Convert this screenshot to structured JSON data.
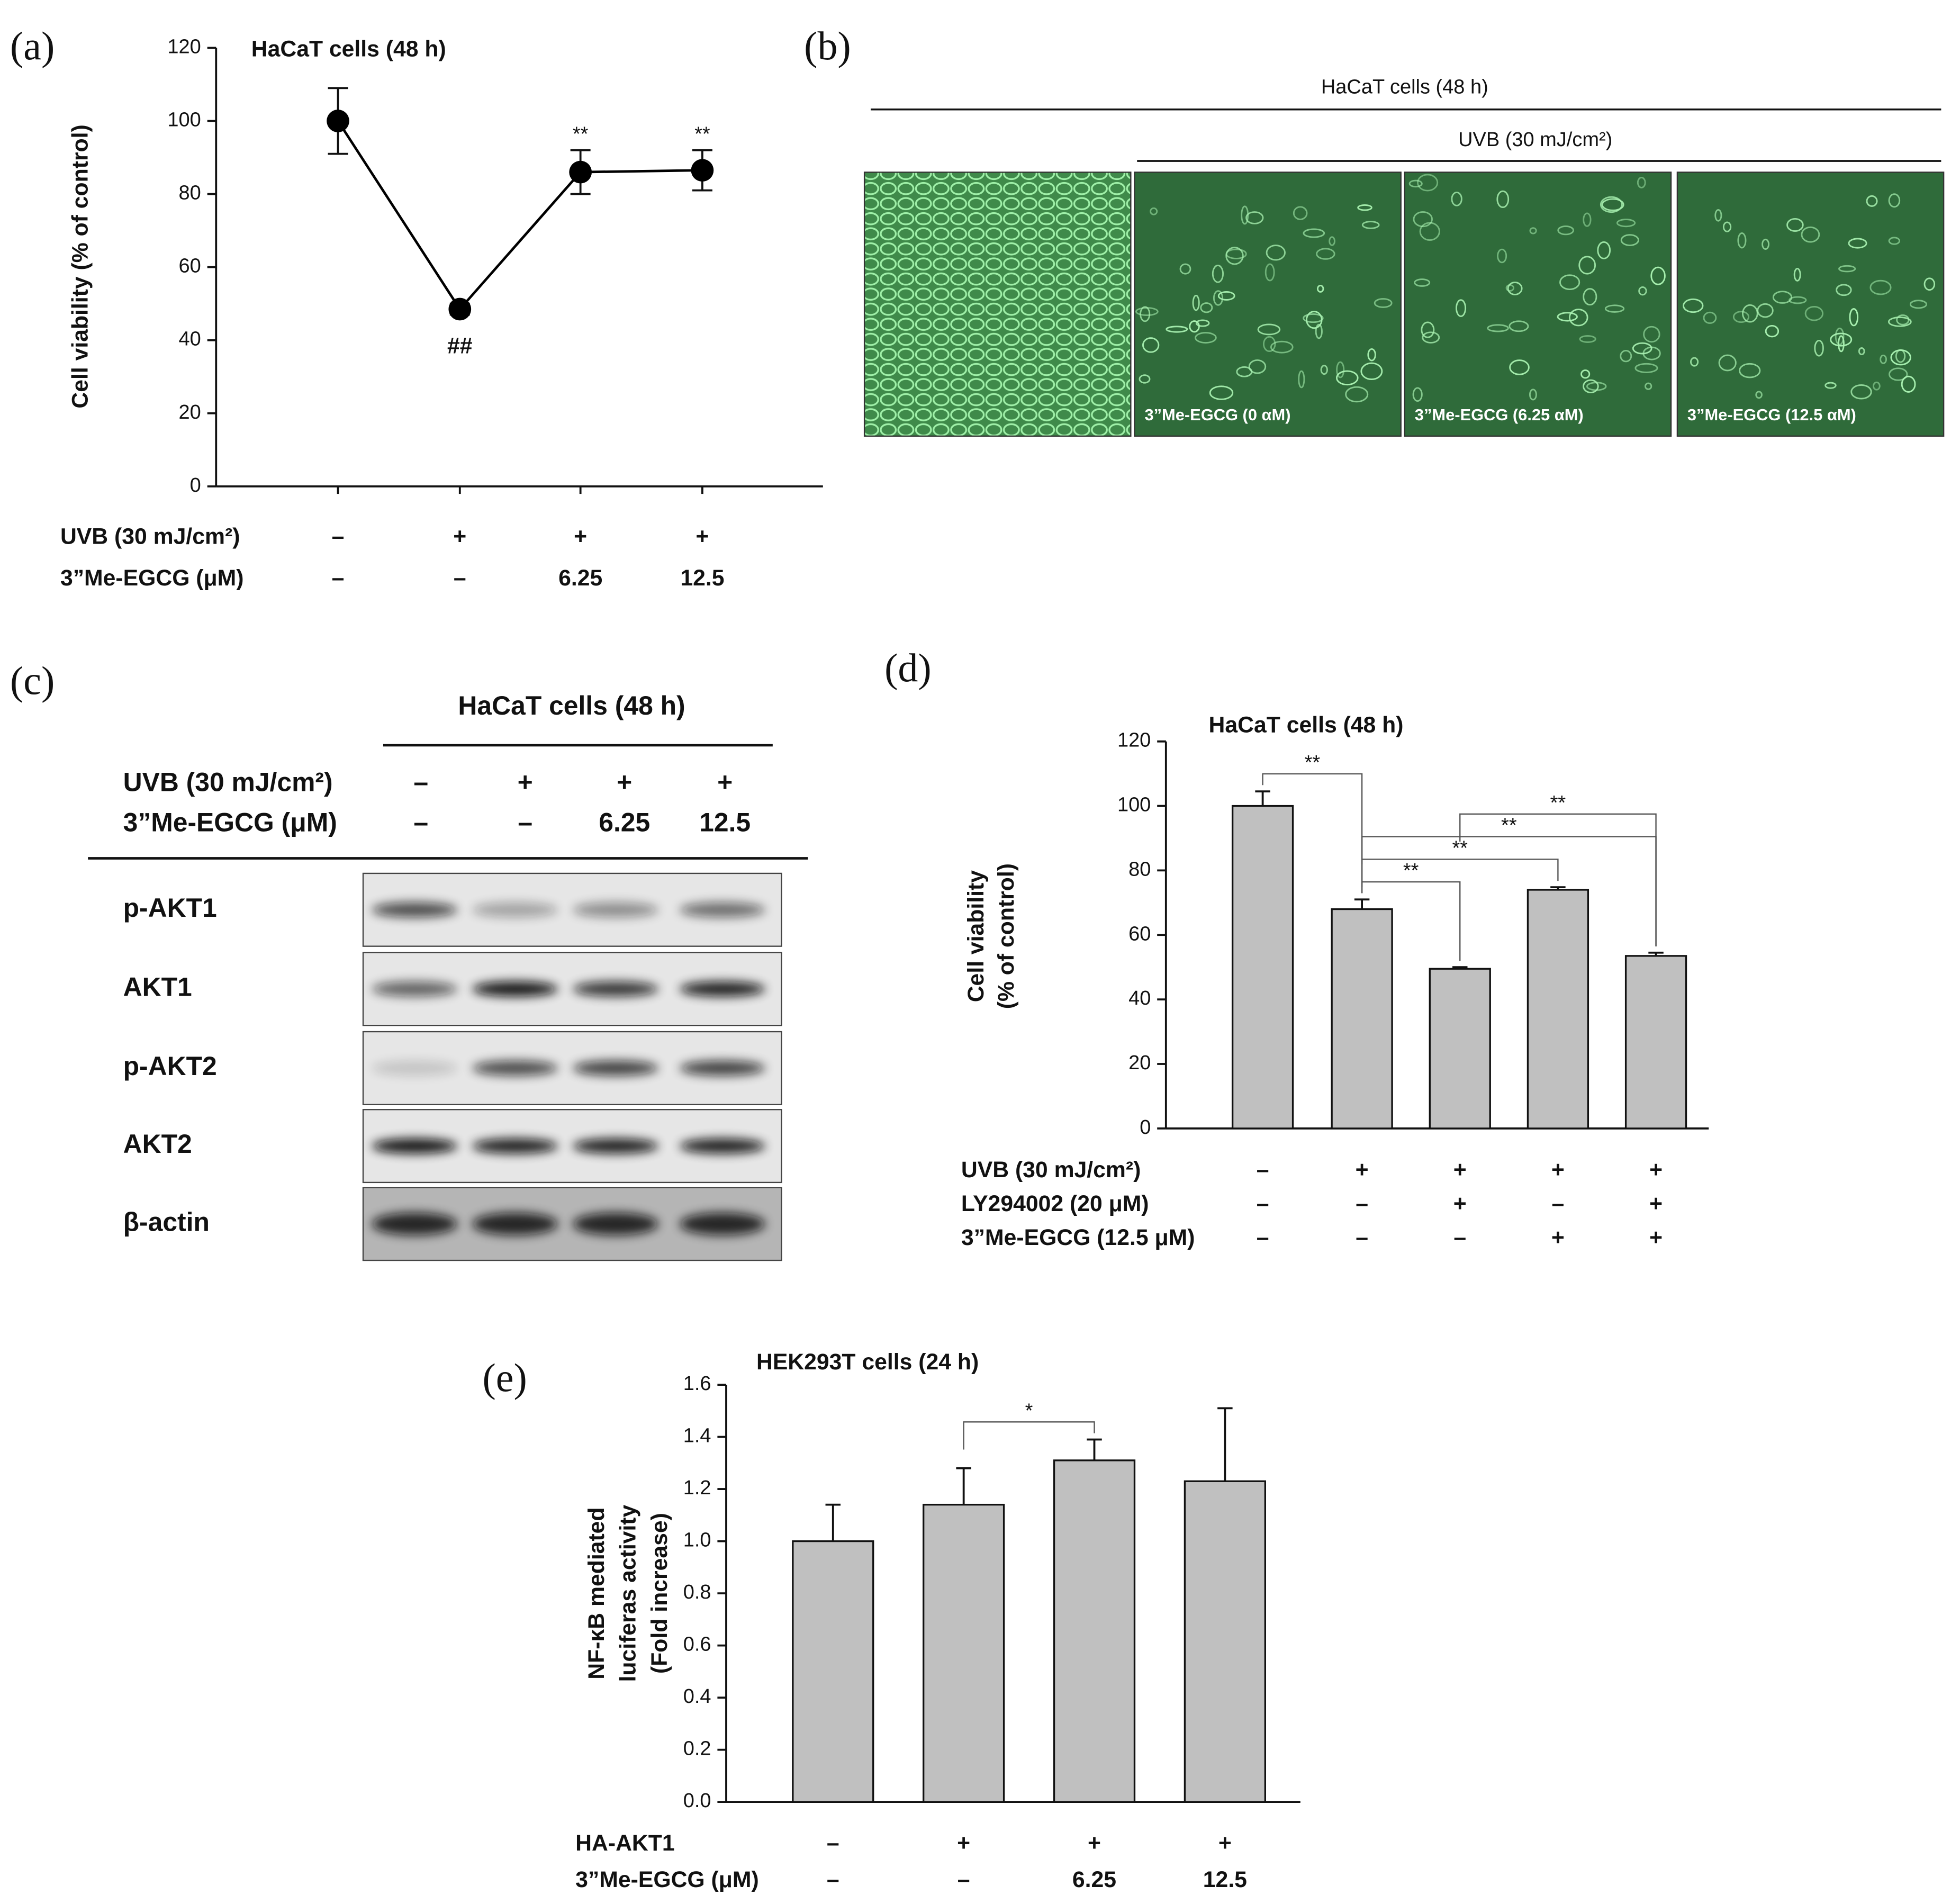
{
  "chart_data": [
    {
      "panel_label": "(a)",
      "type": "line",
      "title": "HaCaT cells (48 h)",
      "ylabel": [
        "Cell viability (% of control)"
      ],
      "values": [
        100,
        48.5,
        86,
        86.5
      ],
      "errors": [
        9,
        1.5,
        6,
        5.5
      ],
      "significance": [
        null,
        "##",
        "**",
        "**"
      ],
      "color": "#000000",
      "ylim": [
        0,
        120
      ],
      "yticks": [
        0,
        20,
        40,
        60,
        80,
        100,
        120
      ],
      "conditions": [
        {
          "label": "UVB (30 mJ/cm²)",
          "values": [
            "–",
            "+",
            "+",
            "+"
          ]
        },
        {
          "label": "3”Me-EGCG (μM)",
          "values": [
            "–",
            "–",
            "6.25",
            "12.5"
          ]
        }
      ]
    },
    {
      "panel_label": "(d)",
      "type": "bar",
      "title": "HaCaT cells (48 h)",
      "ylabel": [
        "Cell viability",
        "(% of control)"
      ],
      "values": [
        100,
        68,
        49.5,
        74,
        53.5
      ],
      "errors": [
        4.5,
        3,
        0.5,
        0.8,
        1
      ],
      "color": "#c0c0c0",
      "ylim": [
        0,
        120
      ],
      "yticks": [
        0,
        20,
        40,
        60,
        80,
        100,
        120
      ],
      "comparisons": [
        {
          "from": 0,
          "to": 1,
          "label": "**"
        },
        {
          "from": 1,
          "to": 2,
          "label": "**"
        },
        {
          "from": 1,
          "to": 3,
          "label": "**"
        },
        {
          "from": 1,
          "to": 4,
          "label": "**"
        },
        {
          "from": 2,
          "to": 4,
          "label": "**"
        }
      ],
      "conditions": [
        {
          "label": "UVB (30 mJ/cm²)",
          "values": [
            "–",
            "+",
            "+",
            "+",
            "+"
          ]
        },
        {
          "label": "LY294002 (20 μM)",
          "values": [
            "–",
            "–",
            "+",
            "–",
            "+"
          ]
        },
        {
          "label": "3”Me-EGCG (12.5 μM)",
          "values": [
            "–",
            "–",
            "–",
            "+",
            "+"
          ]
        }
      ]
    },
    {
      "panel_label": "(e)",
      "type": "bar",
      "title": "HEK293T cells (24 h)",
      "ylabel": [
        "NF-κB mediated",
        "luciferas activity",
        "(Fold increase)"
      ],
      "values": [
        1.0,
        1.14,
        1.31,
        1.23
      ],
      "errors": [
        0.14,
        0.14,
        0.08,
        0.28
      ],
      "color": "#c0c0c0",
      "ylim": [
        0,
        1.6
      ],
      "yticks": [
        {
          "value": 0,
          "label": "0.0"
        },
        0.2,
        0.4,
        0.6,
        0.8,
        {
          "value": 1,
          "label": "1.0"
        },
        1.2,
        1.4,
        1.6
      ],
      "comparisons": [
        {
          "from": 1,
          "to": 2,
          "label": "*"
        }
      ],
      "conditions": [
        {
          "label": "HA-AKT1",
          "values": [
            "–",
            "+",
            "+",
            "+"
          ]
        },
        {
          "label": "3”Me-EGCG (μM)",
          "values": [
            "–",
            "–",
            "6.25",
            "12.5"
          ]
        }
      ]
    }
  ],
  "micrographs": {
    "panel_label": "(b)",
    "title": "HaCaT cells (48 h)",
    "subtitle": "UVB (30 mJ/cm²)",
    "captions": [
      "3”Me-EGCG (0 αM)",
      "3”Me-EGCG (6.25 αM)",
      "3”Me-EGCG (12.5 αM)"
    ]
  },
  "western_blot": {
    "panel_label": "(c)",
    "title": "HaCaT cells (48 h)",
    "conditions": [
      {
        "label": "UVB (30 mJ/cm²)",
        "values": [
          "–",
          "+",
          "+",
          "+"
        ]
      },
      {
        "label": "3”Me-EGCG (μM)",
        "values": [
          "–",
          "–",
          "6.25",
          "12.5"
        ]
      }
    ],
    "rows": [
      "p-AKT1",
      "AKT1",
      "p-AKT2",
      "AKT2",
      "β-actin"
    ]
  }
}
